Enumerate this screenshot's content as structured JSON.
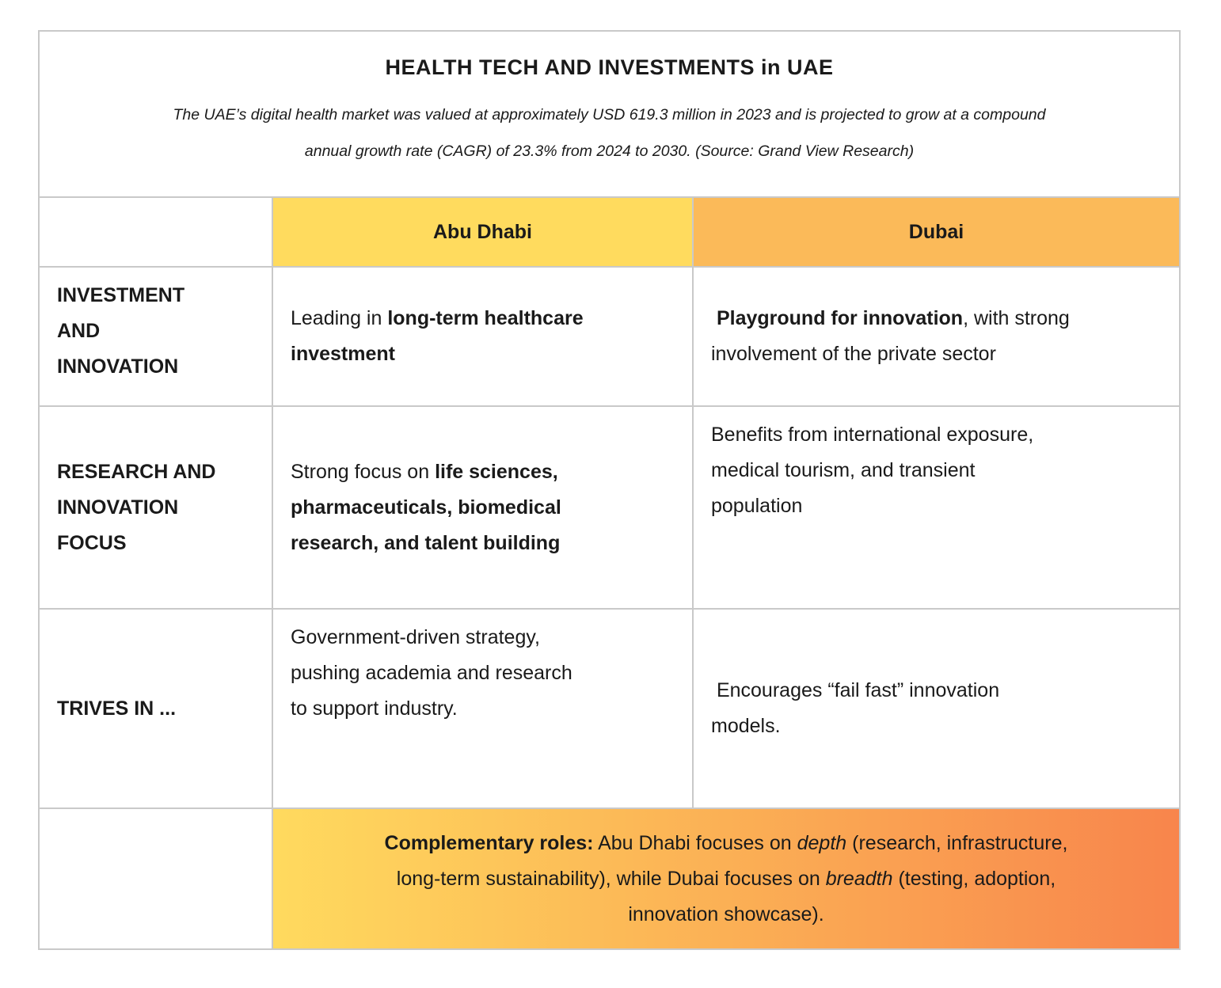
{
  "header": {
    "title": "HEALTH TECH AND INVESTMENTS in UAE",
    "subtitle": "The UAE’s digital health market was valued at approximately USD 619.3 million in 2023 and is projected to grow at a compound\nannual growth rate (CAGR) of 23.3% from 2024 to 2030. (Source: Grand View Research)"
  },
  "colors": {
    "abu_dhabi_header": "#FFDB5E",
    "dubai_header": "#FBBA59",
    "footer_gradient": "linear-gradient(90deg, #FFDA5E 0%, #FBB055 50%, #F8854C 100%)",
    "border": "#C9C9C9",
    "text": "#1A1A1A"
  },
  "table": {
    "columns": [
      "",
      "Abu Dhabi",
      "Dubai"
    ],
    "rows": [
      {
        "label": "INVESTMENT\nAND\nINNOVATION",
        "abu_dhabi": [
          {
            "t": "Leading in "
          },
          {
            "t": "long-term healthcare\ninvestment",
            "b": true
          }
        ],
        "dubai": [
          {
            "t": " "
          },
          {
            "t": "Playground for innovation",
            "b": true
          },
          {
            "t": ", with strong\ninvolvement of the private sector"
          }
        ]
      },
      {
        "label": "RESEARCH AND\nINNOVATION\nFOCUS",
        "abu_dhabi": [
          {
            "t": "Strong focus on "
          },
          {
            "t": "life sciences,\npharmaceuticals, biomedical\nresearch, and talent building",
            "b": true
          }
        ],
        "dubai": [
          {
            "t": "Benefits from international exposure,\nmedical tourism, and transient\npopulation"
          }
        ]
      },
      {
        "label": "TRIVES IN ...",
        "abu_dhabi": [
          {
            "t": "Government-driven strategy,\npushing academia and research\nto support industry."
          }
        ],
        "dubai": [
          {
            "t": " Encourages “fail fast” innovation\nmodels."
          }
        ]
      }
    ],
    "footer": [
      {
        "t": "Complementary roles:",
        "b": true
      },
      {
        "t": " Abu Dhabi focuses on "
      },
      {
        "t": "depth",
        "i": true
      },
      {
        "t": " (research, infrastructure,\nlong-term sustainability), while Dubai focuses on "
      },
      {
        "t": "breadth",
        "i": true
      },
      {
        "t": " (testing, adoption,\ninnovation showcase)."
      }
    ]
  }
}
